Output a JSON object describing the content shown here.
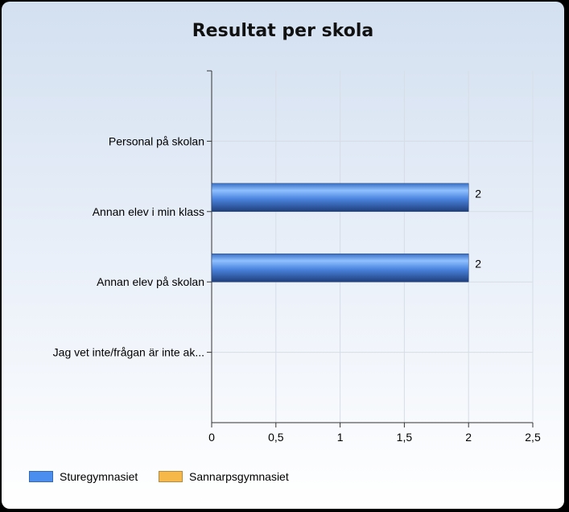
{
  "chart_data": {
    "type": "bar",
    "orientation": "horizontal",
    "title": "Resultat per skola",
    "categories": [
      "Personal på skolan",
      "Annan elev i min klass",
      "Annan elev på skolan",
      "Jag vet inte/frågan är inte ak..."
    ],
    "series": [
      {
        "name": "Sturegymnasiet",
        "color": "#4a8ef0",
        "values": [
          0,
          2,
          2,
          0
        ]
      },
      {
        "name": "Sannarpsgymnasiet",
        "color": "#f7b84a",
        "values": [
          0,
          0,
          0,
          0
        ]
      }
    ],
    "data_labels": [
      "",
      "2",
      "2",
      ""
    ],
    "xlim": [
      0,
      2.5
    ],
    "xticks": [
      "0",
      "0,5",
      "1",
      "1,5",
      "2",
      "2,5"
    ],
    "grid": true,
    "legend_position": "bottom-left"
  }
}
